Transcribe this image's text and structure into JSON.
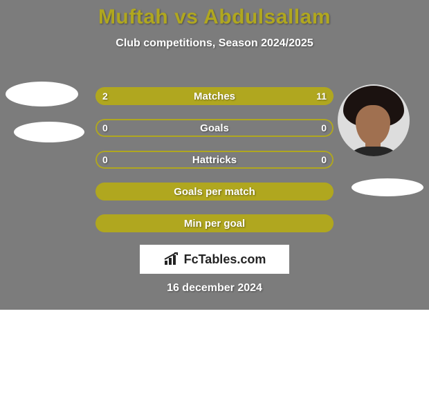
{
  "background_color": "#7c7c7c",
  "accent_color": "#b0a71f",
  "title": "Muftah vs Abdulsallam",
  "title_color": "#b0a71f",
  "title_fontsize": 30,
  "subtitle": "Club competitions, Season 2024/2025",
  "subtitle_color": "#ffffff",
  "subtitle_fontsize": 16,
  "text_shadow": "1px 1px 2px rgba(0,0,0,0.4)",
  "date": "16 december 2024",
  "date_color": "#ffffff",
  "brand": {
    "bg": "#ffffff",
    "text": "FcTables.com",
    "text_color": "#232323",
    "icon_color": "#232323"
  },
  "bars": {
    "fill_color": "#b0a71f",
    "border_color": "#b0a71f",
    "border_width": 2,
    "height": 26,
    "radius": 13,
    "gap": 20,
    "label_color": "#ffffff"
  },
  "rows": [
    {
      "label": "Matches",
      "left_val": "2",
      "right_val": "11",
      "left_num": 2,
      "right_num": 11,
      "left_pct": 15.4,
      "right_pct": 84.6,
      "show_vals": true
    },
    {
      "label": "Goals",
      "left_val": "0",
      "right_val": "0",
      "left_num": 0,
      "right_num": 0,
      "left_pct": 0,
      "right_pct": 0,
      "show_vals": true
    },
    {
      "label": "Hattricks",
      "left_val": "0",
      "right_val": "0",
      "left_num": 0,
      "right_num": 0,
      "left_pct": 0,
      "right_pct": 0,
      "show_vals": true
    },
    {
      "label": "Goals per match",
      "left_val": "",
      "right_val": "",
      "left_num": 0,
      "right_num": 0,
      "left_pct": 100,
      "right_pct": 0,
      "show_vals": false
    },
    {
      "label": "Min per goal",
      "left_val": "",
      "right_val": "",
      "left_num": 0,
      "right_num": 0,
      "left_pct": 100,
      "right_pct": 0,
      "show_vals": false
    }
  ],
  "player_left": {
    "name": "Muftah"
  },
  "player_right": {
    "name": "Abdulsallam",
    "skin": "#a07050",
    "hair": "#1b1210",
    "shirt": "#262626"
  }
}
